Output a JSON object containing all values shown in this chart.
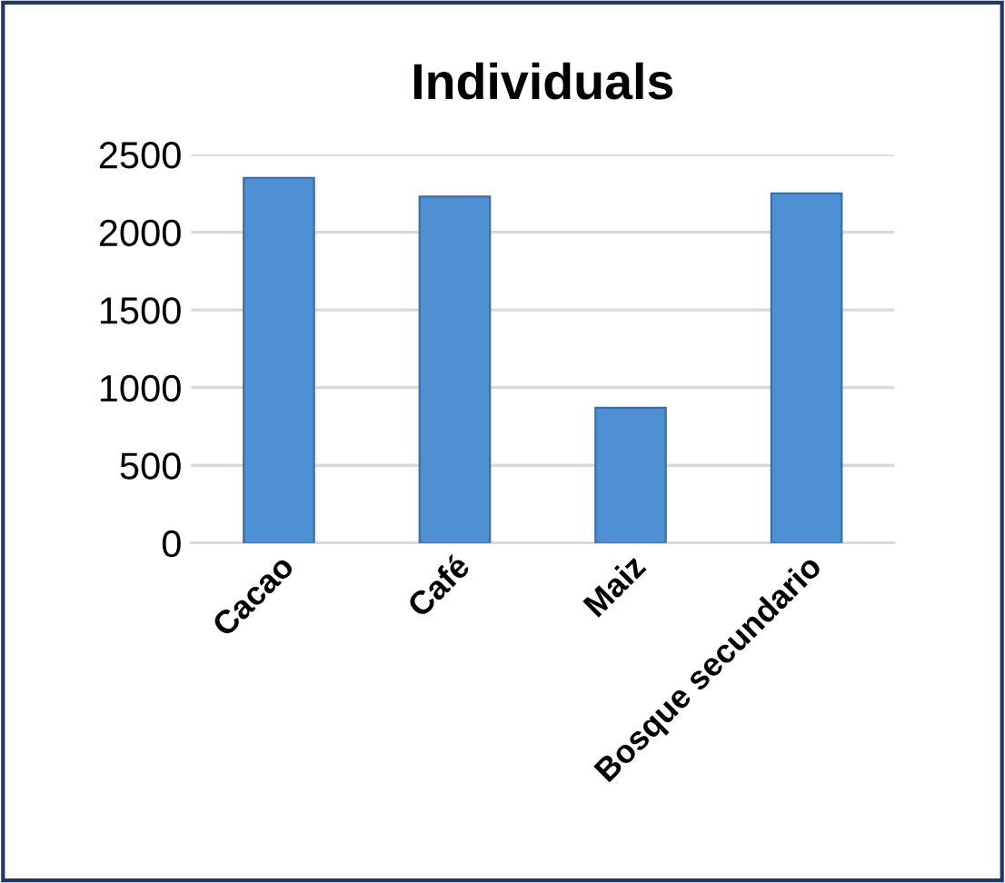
{
  "chart_data": {
    "type": "bar",
    "title": "Individuals",
    "categories": [
      "Cacao",
      "Café",
      "Maiz",
      "Bosque secundario"
    ],
    "values": [
      2350,
      2230,
      870,
      2250
    ],
    "color": "#4f8fd4",
    "ylim": [
      0,
      2500
    ],
    "yticks": [
      0,
      500,
      1000,
      1500,
      2000,
      2500
    ],
    "grid": "y"
  }
}
